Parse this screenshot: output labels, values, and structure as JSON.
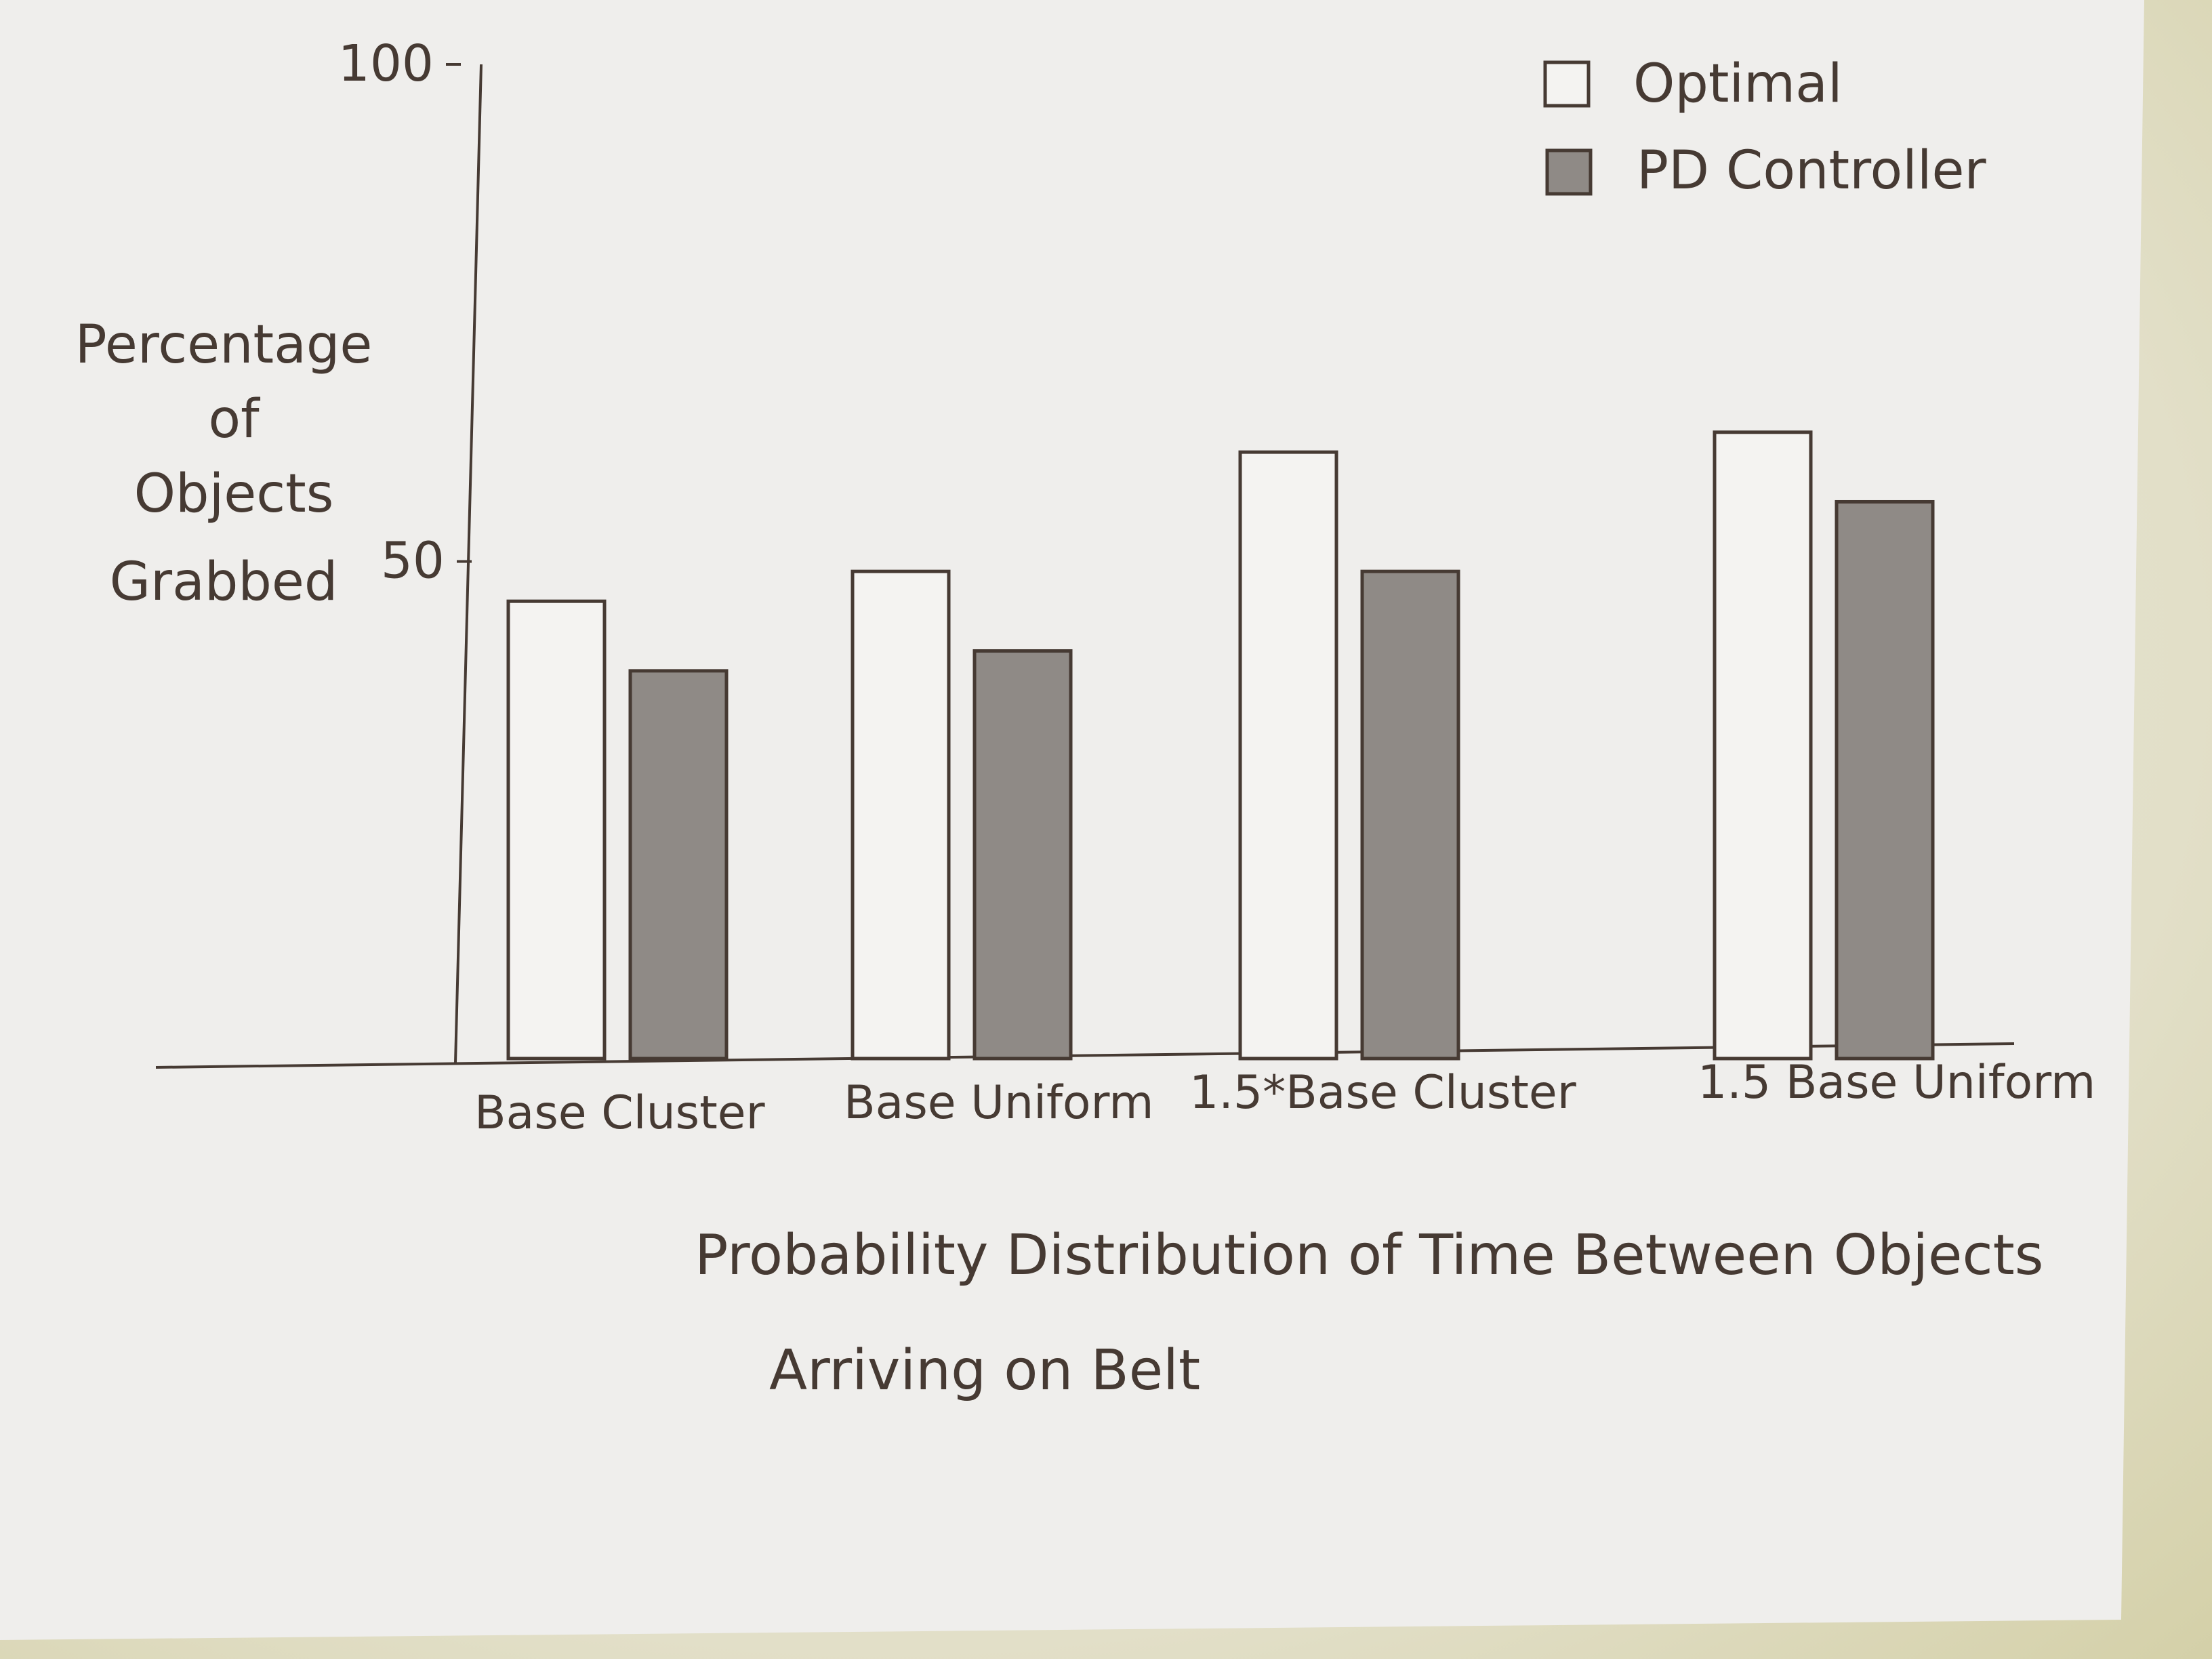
{
  "chart_data": {
    "type": "bar",
    "categories": [
      "Base Cluster",
      "Base Uniform",
      "1.5*Base Cluster",
      "1.5 Base Uniform"
    ],
    "series": [
      {
        "name": "Optimal",
        "values": [
          46,
          49,
          61,
          63
        ]
      },
      {
        "name": "PD Controller",
        "values": [
          39,
          41,
          49,
          56
        ]
      }
    ],
    "yticks": [
      {
        "value": 50,
        "label": "50"
      },
      {
        "value": 100,
        "label": "100"
      }
    ],
    "ylabel_lines": [
      "Percentage",
      "of",
      "Objects",
      "Grabbed"
    ],
    "xlabel_lines": [
      "Probability Distribution of Time Between Objects",
      "Arriving on Belt"
    ],
    "ylim": [
      0,
      100
    ],
    "grid": false,
    "legend_position": "top-right",
    "colors": {
      "optimal_fill": "#f4f3f1",
      "pd_fill": "#8f8a86",
      "ink": "#463a33",
      "paper": "#efeeec"
    }
  }
}
